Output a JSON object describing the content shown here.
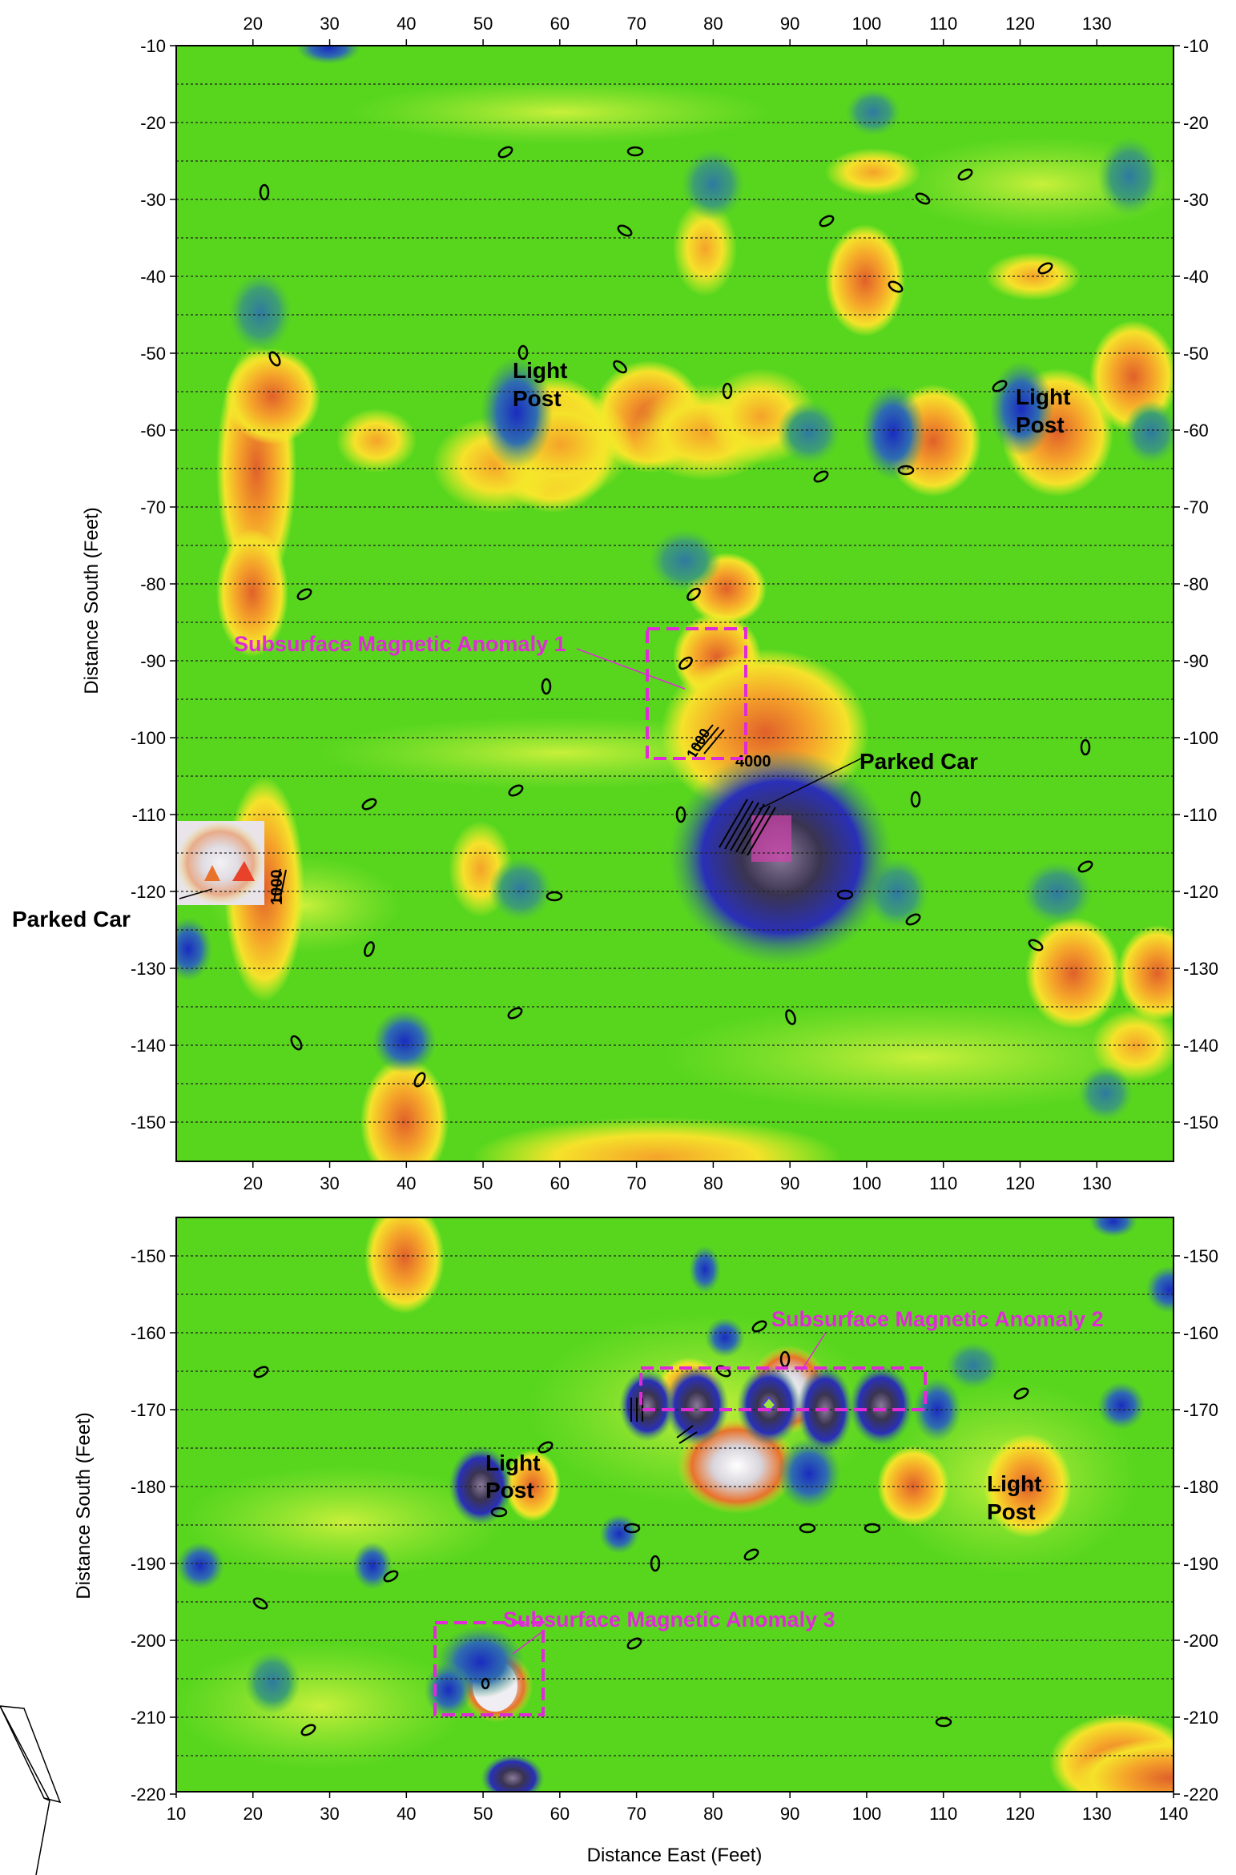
{
  "colors": {
    "background": "#58d61e",
    "positive_low": "#f5f52a",
    "positive_mid": "#f5a32a",
    "positive_high": "#e8722a",
    "negative_low": "#3e9a6a",
    "negative_mid": "#2a40c8",
    "extreme": "#e8e8ea",
    "anomaly_box": "#e02ad8",
    "line": "#111111"
  },
  "x_ticks_top_panel": [
    "20",
    "30",
    "40",
    "50",
    "60",
    "70",
    "80",
    "90",
    "100",
    "110",
    "120",
    "130"
  ],
  "x_ticks_bottom_panel": [
    "10",
    "20",
    "30",
    "40",
    "50",
    "60",
    "70",
    "80",
    "90",
    "100",
    "110",
    "120",
    "130",
    "140"
  ],
  "top_panel": {
    "y_label": "Distance South (Feet)",
    "y_ticks": [
      "-10",
      "-20",
      "-30",
      "-40",
      "-50",
      "-60",
      "-70",
      "-80",
      "-90",
      "-100",
      "-110",
      "-120",
      "-130",
      "-140",
      "-150"
    ],
    "annotations": {
      "light_post_a": [
        "Light",
        "Post"
      ],
      "light_post_b": [
        "Light",
        "Post"
      ],
      "parked_car_right": "Parked Car",
      "parked_car_left": "Parked Car",
      "anomaly_1": "Subsurface Magnetic Anomaly 1"
    },
    "contour_labels": [
      "0",
      "1000",
      "4000"
    ]
  },
  "bottom_panel": {
    "y_label": "Distance South (Feet)",
    "y_ticks": [
      "-150",
      "-160",
      "-170",
      "-180",
      "-190",
      "-200",
      "-210",
      "-220"
    ],
    "x_label": "Distance East (Feet)",
    "annotations": {
      "light_post_a": [
        "Light",
        "Post"
      ],
      "light_post_b": [
        "Light",
        "Post"
      ],
      "anomaly_2": "Subsurface Magnetic Anomaly 2",
      "anomaly_3": "Subsurface Magnetic Anomaly 3"
    }
  }
}
